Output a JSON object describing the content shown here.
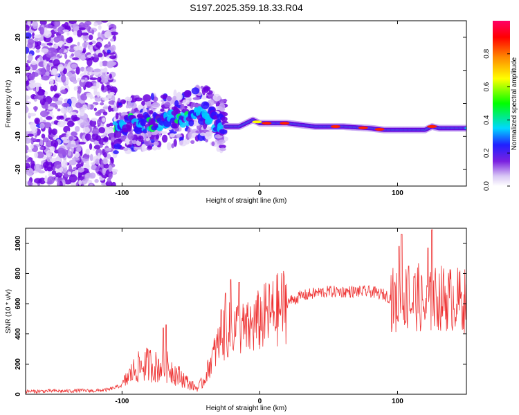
{
  "page": {
    "title": "S197.2025.359.18.33.R04"
  },
  "chart_data": [
    {
      "type": "heatmap",
      "title": "S197.2025.359.18.33.R04",
      "xlabel": "Height of straight line (km)",
      "ylabel": "Frequency (Hz)",
      "xlim": [
        -170,
        150
      ],
      "ylim": [
        -25,
        25
      ],
      "x_ticks": [
        -100,
        0,
        100
      ],
      "y_ticks": [
        -20,
        -10,
        0,
        10,
        20
      ],
      "colorbar": {
        "label": "Normalized spectral amplitude",
        "range": [
          0.0,
          1.0
        ],
        "ticks": [
          0.0,
          0.2,
          0.4,
          0.6,
          0.8
        ],
        "tick_labels": [
          "0.0",
          "0.2",
          "0.4",
          "0.6",
          "0.8"
        ]
      },
      "ridge": {
        "x": [
          -100,
          -90,
          -80,
          -70,
          -60,
          -50,
          -45,
          -40,
          -35,
          -30,
          -25,
          -20,
          -15,
          -10,
          -5,
          0,
          10,
          20,
          40,
          60,
          80,
          90,
          100,
          110,
          120,
          125,
          130,
          140,
          150
        ],
        "y": [
          -7,
          -6,
          -6,
          -5,
          -5,
          -4,
          -3,
          -3,
          -4,
          -6,
          -7,
          -7,
          -7,
          -6,
          -5,
          -6,
          -6,
          -6,
          -7,
          -7,
          -7.5,
          -8,
          -8,
          -8,
          -8,
          -7,
          -7.5,
          -7.5,
          -7.5
        ]
      }
    },
    {
      "type": "line",
      "xlabel": "Height of straight line (km)",
      "ylabel": "SNR (10 * v/v)",
      "xlim": [
        -170,
        150
      ],
      "ylim": [
        0,
        1100
      ],
      "x_ticks": [
        -100,
        0,
        100
      ],
      "y_ticks": [
        0,
        200,
        400,
        600,
        800,
        1000
      ],
      "series": [
        {
          "name": "SNR",
          "color": "#ee3333",
          "x": [
            -170,
            -160,
            -150,
            -140,
            -130,
            -120,
            -110,
            -100,
            -95,
            -90,
            -85,
            -80,
            -75,
            -70,
            -65,
            -60,
            -55,
            -50,
            -45,
            -40,
            -35,
            -30,
            -25,
            -20,
            -15,
            -10,
            -5,
            0,
            5,
            10,
            15,
            20,
            30,
            40,
            50,
            60,
            70,
            80,
            90,
            95,
            100,
            105,
            110,
            115,
            120,
            125,
            130,
            140,
            150
          ],
          "values": [
            18,
            20,
            22,
            20,
            25,
            22,
            30,
            60,
            120,
            170,
            190,
            200,
            180,
            190,
            170,
            130,
            100,
            60,
            40,
            100,
            230,
            330,
            400,
            440,
            440,
            420,
            450,
            490,
            520,
            540,
            570,
            610,
            650,
            670,
            680,
            680,
            680,
            680,
            660,
            640,
            600,
            650,
            600,
            650,
            560,
            620,
            640,
            630,
            620
          ]
        }
      ],
      "peaks": [
        {
          "x": -70,
          "y": 440
        },
        {
          "x": -68,
          "y": 460
        },
        {
          "x": -28,
          "y": 560
        },
        {
          "x": -25,
          "y": 670
        },
        {
          "x": -21,
          "y": 760
        },
        {
          "x": -15,
          "y": 740
        },
        {
          "x": 101,
          "y": 980
        },
        {
          "x": 103,
          "y": 1060
        },
        {
          "x": 108,
          "y": 850
        },
        {
          "x": 112,
          "y": 780
        },
        {
          "x": 122,
          "y": 970
        },
        {
          "x": 125,
          "y": 1090
        }
      ]
    }
  ]
}
